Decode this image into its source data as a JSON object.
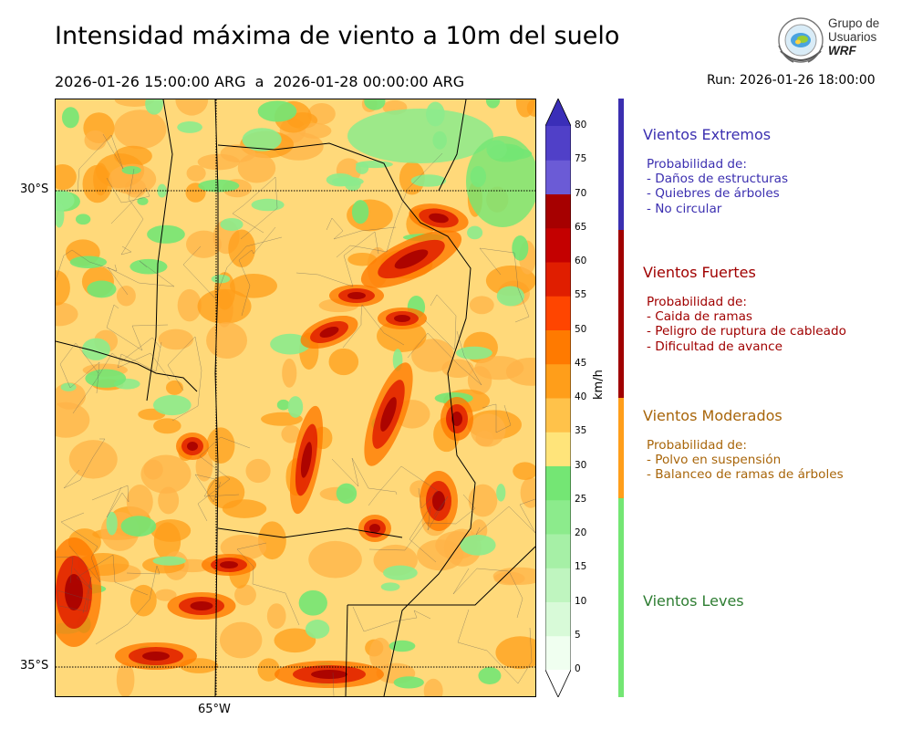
{
  "header": {
    "title": "Intensidad máxima de viento a 10m del suelo",
    "period": "2026-01-26 15:00:00 ARG  a  2026-01-28 00:00:00 ARG",
    "run": "Run: 2026-01-26 18:00:00"
  },
  "logo": {
    "line1": "Grupo de",
    "line2": "Usuarios",
    "line3": "WRF"
  },
  "map": {
    "lat_labels": [
      "30°S",
      "35°S"
    ],
    "lon_labels": [
      "65°W"
    ]
  },
  "colorbar": {
    "unit": "km/h",
    "ticks": [
      "0",
      "5",
      "10",
      "15",
      "20",
      "25",
      "30",
      "35",
      "40",
      "45",
      "50",
      "55",
      "60",
      "65",
      "70",
      "75",
      "80"
    ],
    "colors": [
      "#f0fff0",
      "#d8fad8",
      "#bff5bf",
      "#a6f0a6",
      "#8ceb8c",
      "#74e674",
      "#ffe47a",
      "#ffc24a",
      "#ff9e1a",
      "#ff7a00",
      "#ff4500",
      "#e01e00",
      "#c40000",
      "#a60000",
      "#6b5bd6",
      "#5040c8",
      "#3a2eb8"
    ]
  },
  "categories": [
    {
      "title": "Vientos Extremos",
      "color": "#3b2fb0",
      "intro": "Probabilidad de:",
      "lines": [
        "- Daños de estructuras",
        "- Quiebres de árboles",
        "- No circular"
      ]
    },
    {
      "title": "Vientos Fuertes",
      "color": "#a00000",
      "intro": "Probabilidad de:",
      "lines": [
        "- Caida de ramas",
        "- Peligro de ruptura de cableado",
        "- Dificultad de avance"
      ]
    },
    {
      "title": "Vientos Moderados",
      "color": "#a8650a",
      "intro": "Probabilidad de:",
      "lines": [
        "- Polvo en suspensión",
        "- Balanceo de ramas de árboles"
      ]
    },
    {
      "title": "Vientos Leves",
      "color": "#2e7d32",
      "intro": "",
      "lines": []
    }
  ]
}
